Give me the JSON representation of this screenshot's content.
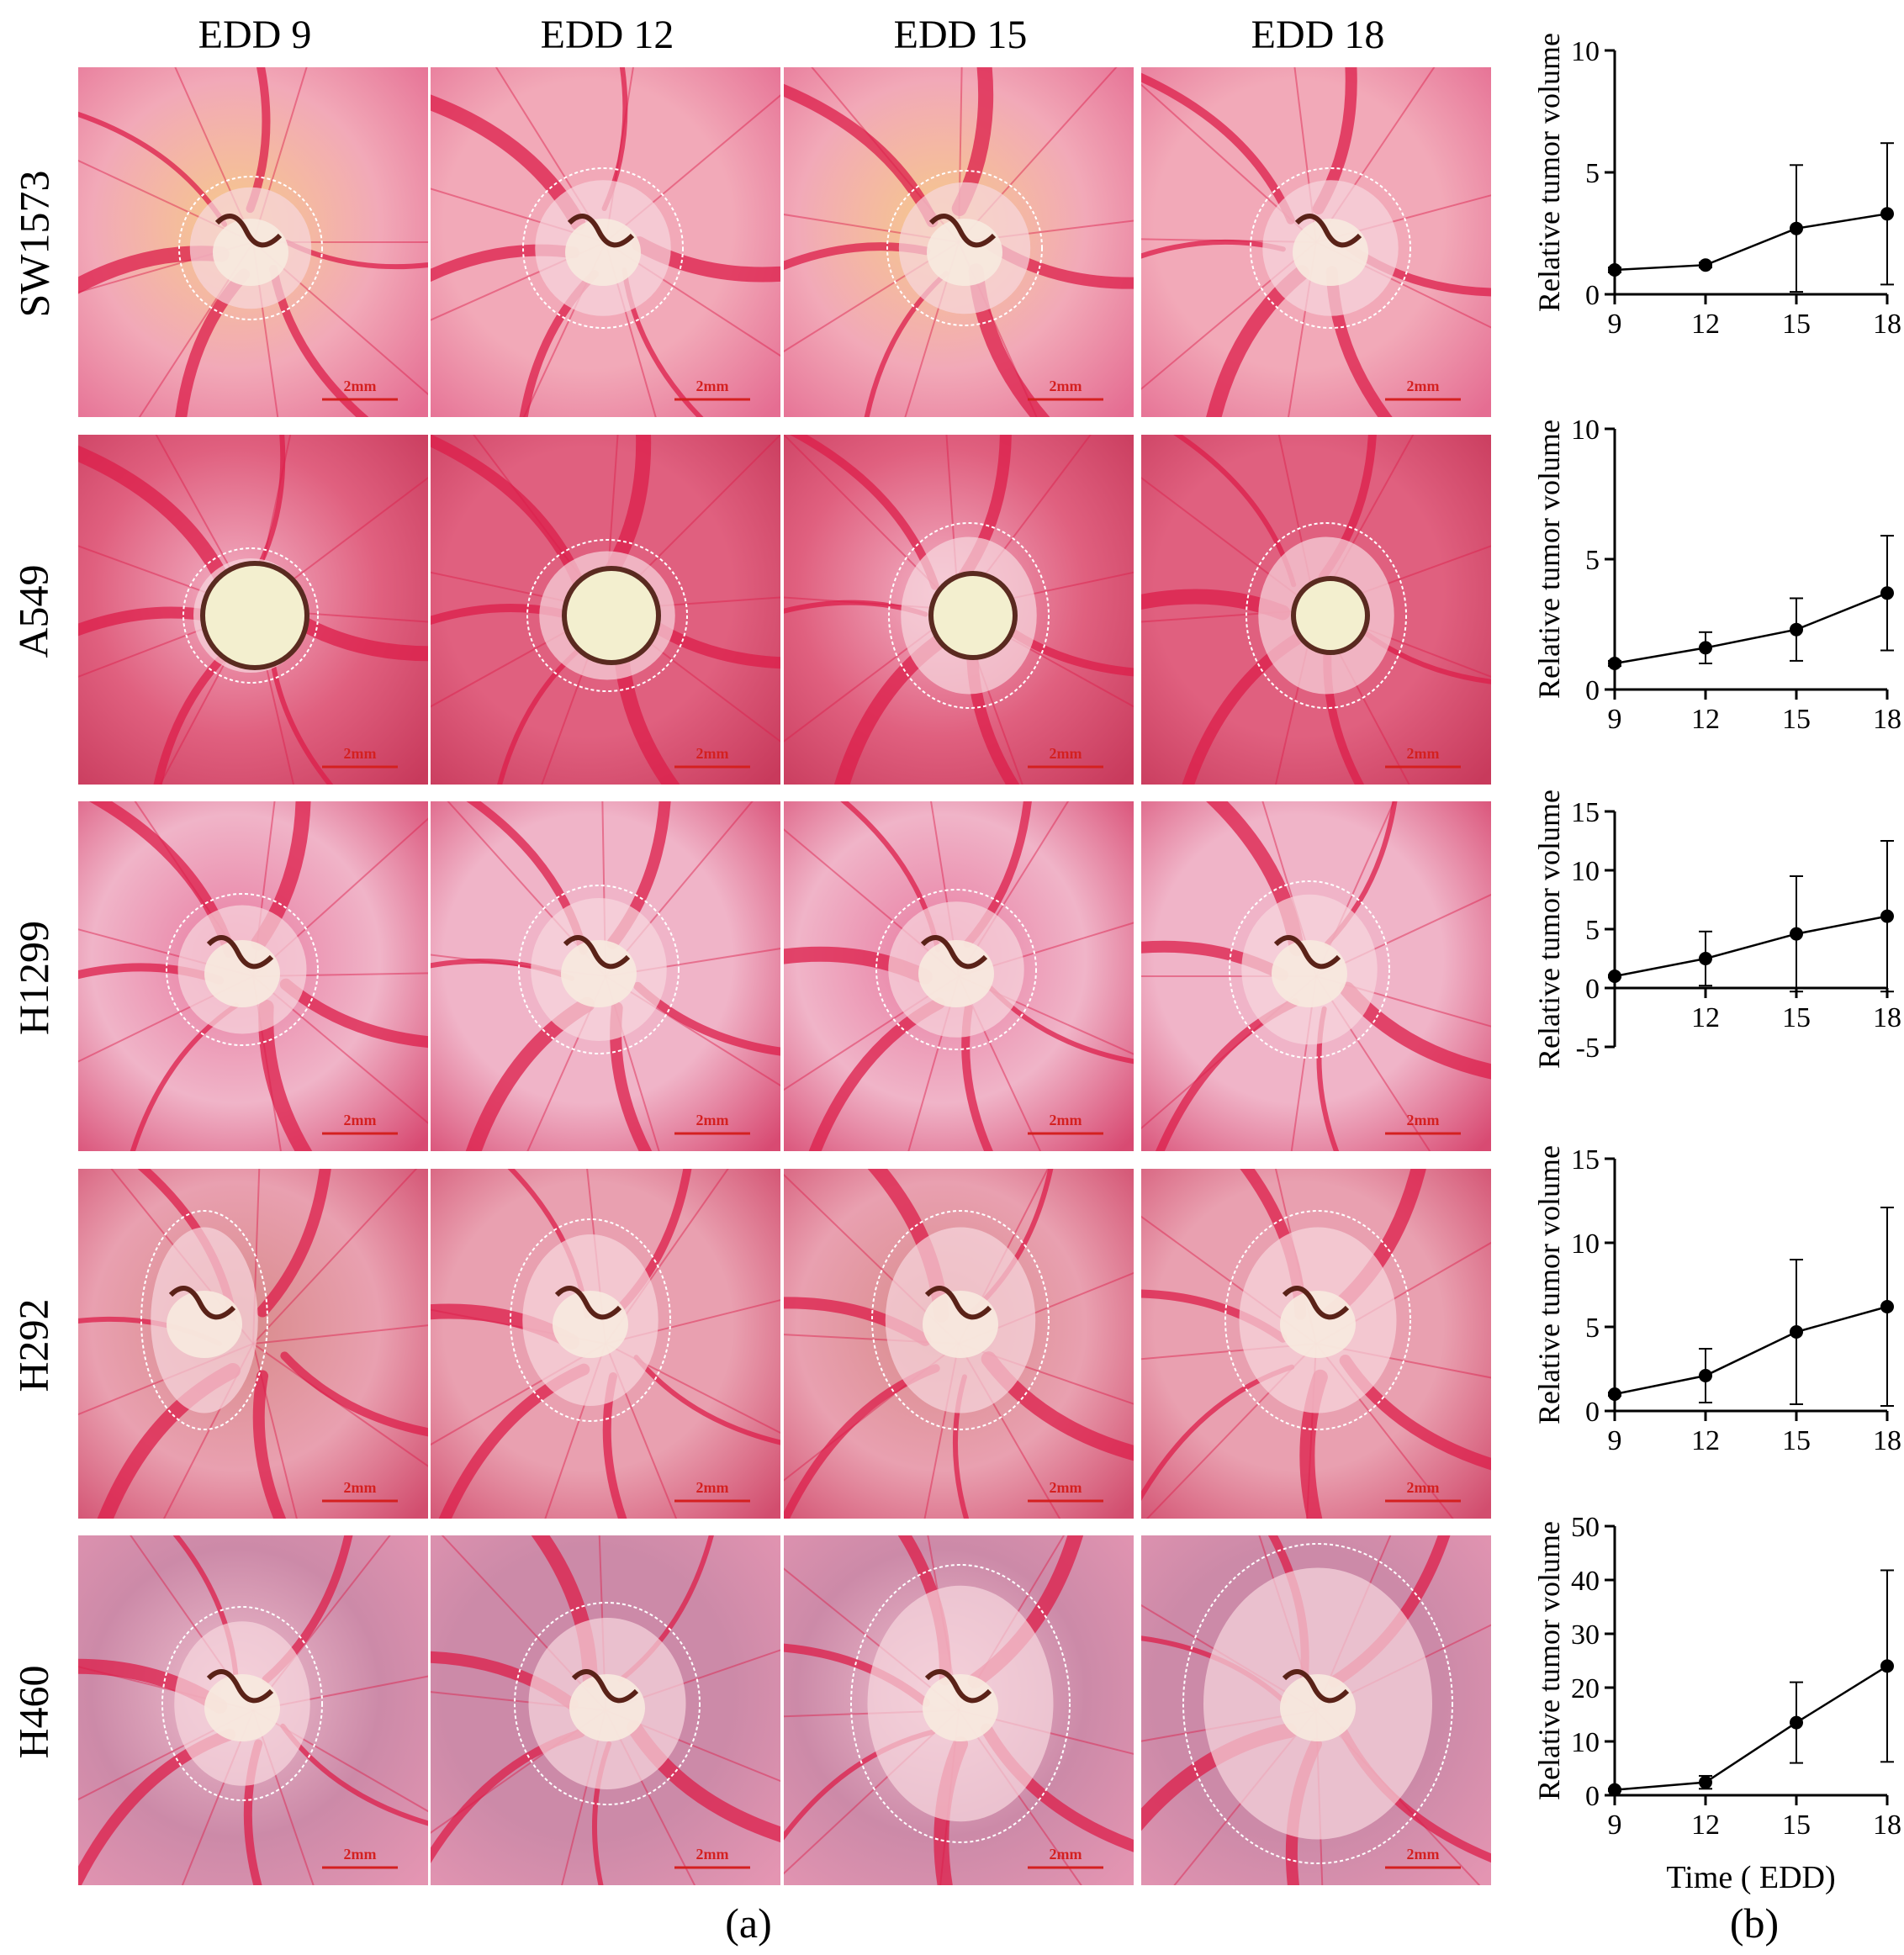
{
  "columns": [
    "EDD 9",
    "EDD 12",
    "EDD 15",
    "EDD 18"
  ],
  "rows": [
    "SW1573",
    "A549",
    "H1299",
    "H292",
    "H460"
  ],
  "scale_bar_label": "2mm",
  "panel_labels": {
    "a": "(a)",
    "b": "(b)"
  },
  "colors": {
    "membrane_light": "#f4b8c6",
    "membrane_pink": "#e8719a",
    "vessel_red": "#dc1e4a",
    "yolk_orange": "#f4c07a",
    "tumor_white": "#f7eadf",
    "scale_bar_red": "#d42020",
    "dashed_circle": "#ffffff"
  },
  "chart_data": [
    {
      "type": "line",
      "row": "SW1573",
      "x": [
        9,
        12,
        15,
        18
      ],
      "y": [
        1.0,
        1.2,
        2.7,
        3.3
      ],
      "error": [
        0.1,
        0.1,
        2.6,
        2.9
      ],
      "xlabel": "",
      "ylabel": "Relative tumor volume",
      "xticks": [
        9,
        12,
        15,
        18
      ],
      "yticks": [
        0,
        5,
        10
      ],
      "xlim": [
        9,
        18
      ],
      "ylim": [
        0,
        10
      ]
    },
    {
      "type": "line",
      "row": "A549",
      "x": [
        9,
        12,
        15,
        18
      ],
      "y": [
        1.0,
        1.6,
        2.3,
        3.7
      ],
      "error": [
        0.1,
        0.6,
        1.2,
        2.2
      ],
      "xlabel": "",
      "ylabel": "Relative tumor volume",
      "xticks": [
        9,
        12,
        15,
        18
      ],
      "yticks": [
        0,
        5,
        10
      ],
      "xlim": [
        9,
        18
      ],
      "ylim": [
        0,
        10
      ]
    },
    {
      "type": "line",
      "row": "H1299",
      "x": [
        9,
        12,
        15,
        18
      ],
      "y": [
        1.0,
        2.5,
        4.6,
        6.1
      ],
      "error": [
        0.1,
        2.3,
        4.9,
        6.4
      ],
      "xlabel": "",
      "ylabel": "Relative tumor volume",
      "xticks": [
        12,
        15,
        18
      ],
      "yticks": [
        -5,
        0,
        5,
        10,
        15
      ],
      "xlim": [
        9,
        18
      ],
      "ylim": [
        -5,
        15
      ]
    },
    {
      "type": "line",
      "row": "H292",
      "x": [
        9,
        12,
        15,
        18
      ],
      "y": [
        1.0,
        2.1,
        4.7,
        6.2
      ],
      "error": [
        0.1,
        1.6,
        4.3,
        5.9
      ],
      "xlabel": "",
      "ylabel": "Relative tumor volume",
      "xticks": [
        9,
        12,
        15,
        18
      ],
      "yticks": [
        0,
        5,
        10,
        15
      ],
      "xlim": [
        9,
        18
      ],
      "ylim": [
        0,
        15
      ]
    },
    {
      "type": "line",
      "row": "H460",
      "x": [
        9,
        12,
        15,
        18
      ],
      "y": [
        1.0,
        2.4,
        13.5,
        24.0
      ],
      "error": [
        0.2,
        1.2,
        7.5,
        17.8
      ],
      "xlabel": "Time ( EDD)",
      "ylabel": "Relative tumor volume",
      "xticks": [
        9,
        12,
        15,
        18
      ],
      "yticks": [
        0,
        10,
        20,
        30,
        40,
        50
      ],
      "xlim": [
        9,
        18
      ],
      "ylim": [
        0,
        50
      ]
    }
  ]
}
